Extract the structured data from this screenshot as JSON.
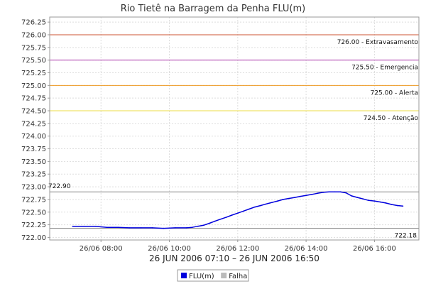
{
  "chart_data": {
    "type": "line",
    "title": "Rio Tietê na Barragem da Penha FLU(m)",
    "subtitle": "26 JUN 2006 07:10 – 26 JUN 2006 16:50",
    "xlabel": "",
    "ylabel": "",
    "ylim": [
      721.95,
      726.35
    ],
    "y_ticks": [
      "722.00",
      "722.25",
      "722.50",
      "722.75",
      "723.00",
      "723.25",
      "723.50",
      "723.75",
      "724.00",
      "724.25",
      "724.50",
      "724.75",
      "725.00",
      "725.25",
      "725.50",
      "725.75",
      "726.00",
      "726.25"
    ],
    "x_range_hours": [
      6.5,
      17.3
    ],
    "x_ticks": [
      {
        "label": "26/06 08:00",
        "hour": 8
      },
      {
        "label": "26/06 10:00",
        "hour": 10
      },
      {
        "label": "26/06 12:00",
        "hour": 12
      },
      {
        "label": "26/06 14:00",
        "hour": 14
      },
      {
        "label": "26/06 16:00",
        "hour": 16
      }
    ],
    "grid": true,
    "thresholds": [
      {
        "value": 726.0,
        "label": "726.00 - Extravasamento",
        "color": "#cc5533"
      },
      {
        "value": 725.5,
        "label": "725.50 - Emergencia",
        "color": "#aa33aa"
      },
      {
        "value": 725.0,
        "label": "725.00 - Alerta",
        "color": "#ee9922"
      },
      {
        "value": 724.5,
        "label": "724.50 - Atenção",
        "color": "#eedd44"
      }
    ],
    "ref_lines": [
      {
        "value": 722.9,
        "label": "722.90",
        "side": "left"
      },
      {
        "value": 722.18,
        "label": "722.18",
        "side": "right"
      }
    ],
    "series": [
      {
        "name": "FLU(m)",
        "color": "#0000dd",
        "x": [
          7.17,
          7.5,
          7.83,
          8.17,
          8.5,
          8.83,
          9.17,
          9.5,
          9.83,
          10.17,
          10.5,
          10.67,
          10.83,
          11.0,
          11.17,
          11.33,
          11.5,
          11.67,
          11.83,
          12.0,
          12.17,
          12.33,
          12.5,
          12.67,
          12.83,
          13.0,
          13.17,
          13.33,
          13.5,
          13.67,
          13.83,
          14.0,
          14.17,
          14.33,
          14.5,
          14.67,
          14.83,
          15.0,
          15.17,
          15.33,
          15.5,
          15.67,
          15.83,
          16.0,
          16.17,
          16.33,
          16.5,
          16.67,
          16.83
        ],
        "y": [
          722.22,
          722.22,
          722.22,
          722.2,
          722.2,
          722.19,
          722.19,
          722.19,
          722.18,
          722.19,
          722.19,
          722.2,
          722.22,
          722.24,
          722.28,
          722.32,
          722.36,
          722.4,
          722.44,
          722.48,
          722.52,
          722.56,
          722.6,
          722.63,
          722.66,
          722.69,
          722.72,
          722.75,
          722.77,
          722.79,
          722.81,
          722.83,
          722.85,
          722.87,
          722.89,
          722.9,
          722.9,
          722.9,
          722.88,
          722.82,
          722.79,
          722.76,
          722.73,
          722.72,
          722.7,
          722.68,
          722.65,
          722.63,
          722.62
        ]
      }
    ],
    "legend": {
      "placement": "bottom-center",
      "items": [
        {
          "label": "FLU(m)",
          "color": "#0000dd"
        },
        {
          "label": "Falha",
          "color": "#bbbbbb"
        }
      ]
    }
  }
}
